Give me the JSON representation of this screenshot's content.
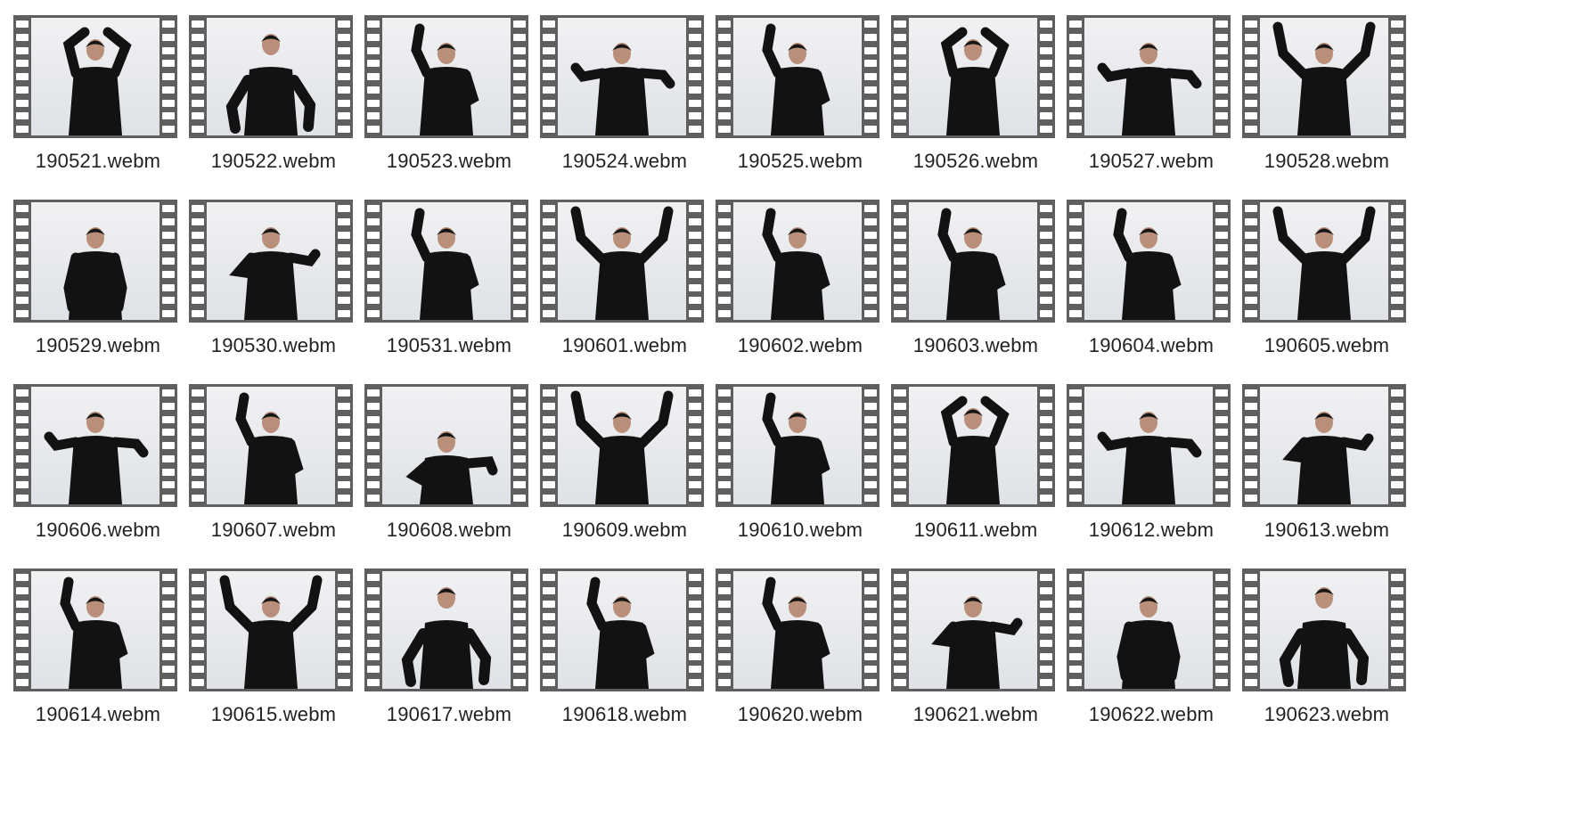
{
  "files": [
    {
      "name": "190521.webm",
      "pose": "arms-overhead"
    },
    {
      "name": "190522.webm",
      "pose": "leaning-close"
    },
    {
      "name": "190523.webm",
      "pose": "hand-raised"
    },
    {
      "name": "190524.webm",
      "pose": "arms-out"
    },
    {
      "name": "190525.webm",
      "pose": "hand-raised"
    },
    {
      "name": "190526.webm",
      "pose": "arms-overhead"
    },
    {
      "name": "190527.webm",
      "pose": "arms-out"
    },
    {
      "name": "190528.webm",
      "pose": "arms-up-wide"
    },
    {
      "name": "190529.webm",
      "pose": "standing"
    },
    {
      "name": "190530.webm",
      "pose": "arms-across"
    },
    {
      "name": "190531.webm",
      "pose": "hand-raised"
    },
    {
      "name": "190601.webm",
      "pose": "arms-up-wide"
    },
    {
      "name": "190602.webm",
      "pose": "hand-raised"
    },
    {
      "name": "190603.webm",
      "pose": "hand-raised"
    },
    {
      "name": "190604.webm",
      "pose": "hand-raised"
    },
    {
      "name": "190605.webm",
      "pose": "arms-up-wide"
    },
    {
      "name": "190606.webm",
      "pose": "arms-out"
    },
    {
      "name": "190607.webm",
      "pose": "hand-raised"
    },
    {
      "name": "190608.webm",
      "pose": "crouching"
    },
    {
      "name": "190609.webm",
      "pose": "arms-up-wide"
    },
    {
      "name": "190610.webm",
      "pose": "hand-raised"
    },
    {
      "name": "190611.webm",
      "pose": "arms-overhead"
    },
    {
      "name": "190612.webm",
      "pose": "arms-out"
    },
    {
      "name": "190613.webm",
      "pose": "arms-across"
    },
    {
      "name": "190614.webm",
      "pose": "hand-raised"
    },
    {
      "name": "190615.webm",
      "pose": "arms-up-wide"
    },
    {
      "name": "190617.webm",
      "pose": "leaning-close"
    },
    {
      "name": "190618.webm",
      "pose": "hand-raised"
    },
    {
      "name": "190620.webm",
      "pose": "hand-raised"
    },
    {
      "name": "190621.webm",
      "pose": "arms-across"
    },
    {
      "name": "190622.webm",
      "pose": "standing"
    },
    {
      "name": "190623.webm",
      "pose": "leaning-close"
    }
  ],
  "icon": "video-file-icon",
  "colors": {
    "background": "#ffffff",
    "film_strip": "#5f5f5f",
    "film_hole": "#ffffff",
    "wall": "#e7e9ec",
    "clothing": "#111111",
    "label_text": "#222222"
  }
}
